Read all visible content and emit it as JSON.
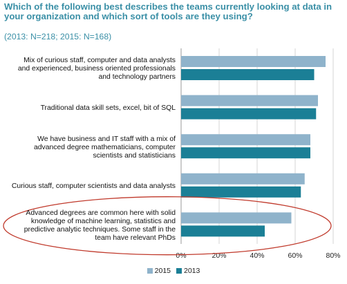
{
  "chart_data": {
    "type": "bar",
    "orientation": "horizontal",
    "title": "Which of the following best describes the teams currently looking at data in your organization and which sort of tools are they using?",
    "subtitle": "(2013: N=218; 2015: N=168)",
    "categories": [
      "Mix of curious staff, computer and data analysts and experienced, business oriented professionals and technology partners",
      "Traditional data skill sets, excel, bit of SQL",
      "We have business and IT staff with a mix of advanced degree mathematicians, computer scientists and statisticians",
      "Curious staff, computer scientists and data analysts",
      "Advanced degrees are common here with solid knowledge of machine learning, statistics and predictive analytic techniques. Some staff in the team have relevant PhDs"
    ],
    "series": [
      {
        "name": "2015",
        "color": "#8fb3cb",
        "values": [
          76,
          72,
          68,
          65,
          58
        ]
      },
      {
        "name": "2013",
        "color": "#1b7f96",
        "values": [
          70,
          71,
          68,
          63,
          44
        ]
      }
    ],
    "xlim": [
      0,
      80
    ],
    "xticks": [
      "0%",
      "20%",
      "40%",
      "60%",
      "80%"
    ],
    "tick_values": [
      0,
      20,
      40,
      60,
      80
    ],
    "legend_position": "bottom",
    "annotation": {
      "shape": "ellipse",
      "color": "#c0392b",
      "target": "category-5"
    }
  }
}
